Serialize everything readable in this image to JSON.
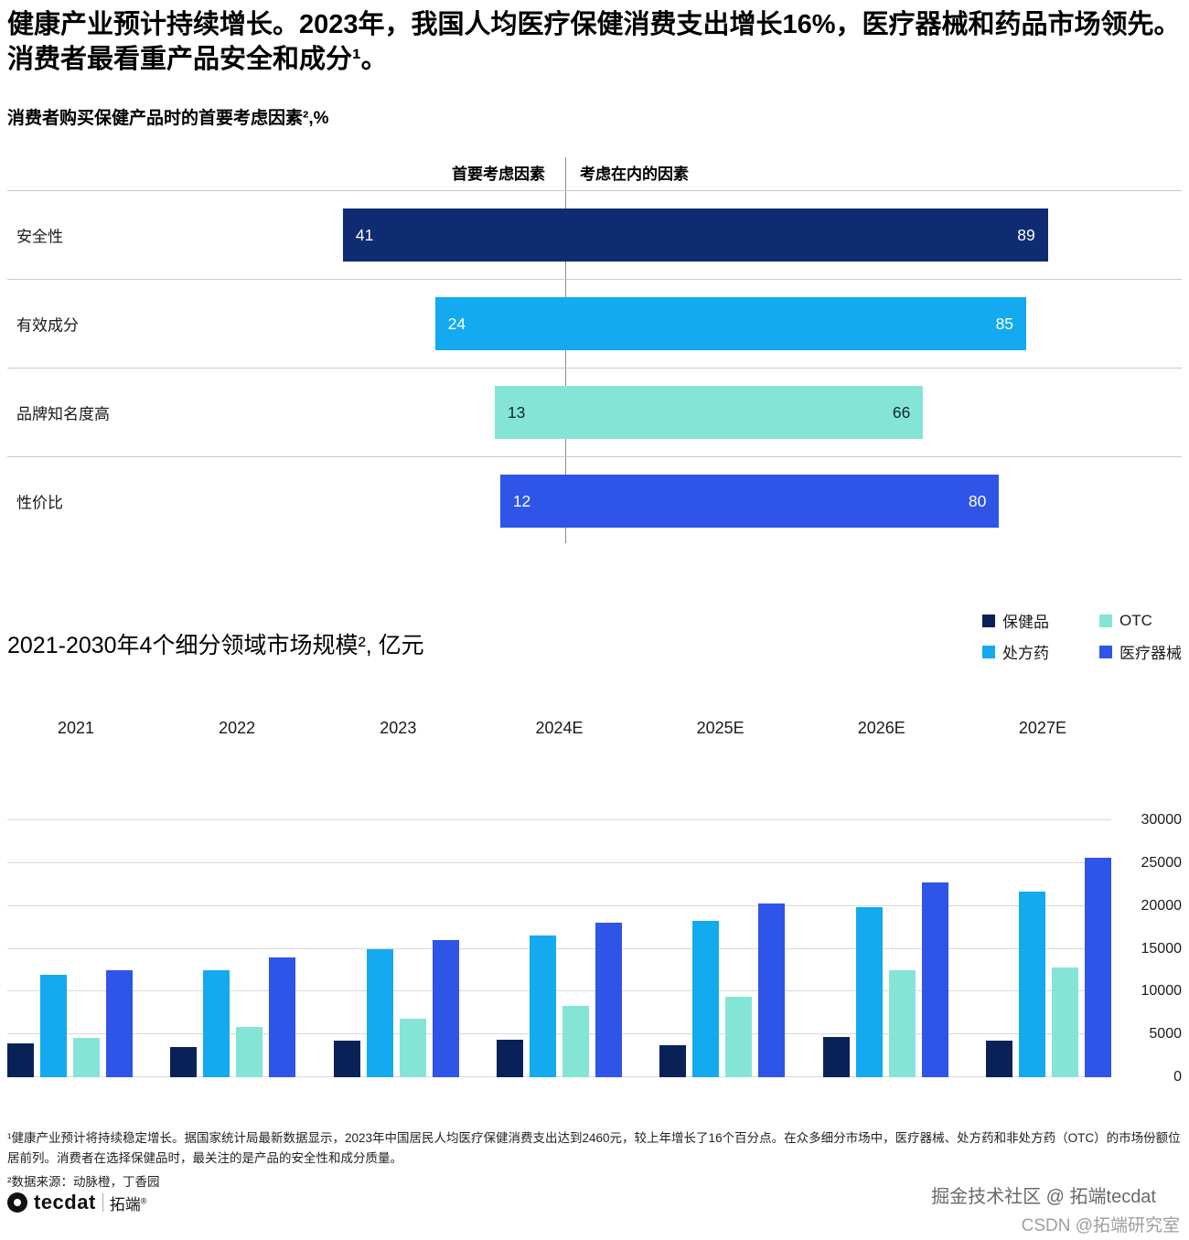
{
  "header": {
    "title": "健康产业预计持续增长。2023年，我国人均医疗保健消费支出增长16%，医疗器械和药品市场领先。消费者最看重产品安全和成分¹。"
  },
  "consideration": {
    "title": "消费者购买保健产品时的首要考虑因素²,%",
    "col_primary": "首要考虑因素",
    "col_considered": "考虑在内的因素"
  },
  "market": {
    "title": "2021-2030年4个细分领域市场规模², 亿元"
  },
  "footnotes": {
    "note1": "¹健康产业预计将持续稳定增长。据国家统计局最新数据显示，2023年中国居民人均医疗保健消费支出达到2460元，较上年增长了16个百分点。在众多细分市场中，医疗器械、处方药和非处方药（OTC）的市场份额位居前列。消费者在选择保健品时，最关注的是产品的安全性和成分质量。",
    "note2": "²数据来源：动脉橙，丁香园"
  },
  "branding": {
    "logo_text": "tecdat",
    "logo_cn": "拓端",
    "registered": "®",
    "watermark_line1": "掘金技术社区 @ 拓端tecdat",
    "watermark_line2": "CSDN @拓端研究室"
  },
  "colors": {
    "navy": "#0f2c72",
    "navy_dark": "#0a2158",
    "azure": "#13aaf0",
    "mint": "#84e5d6",
    "royal": "#2e55e8",
    "grid": "#d9d9d9"
  },
  "chart_data": [
    {
      "type": "bar",
      "orientation": "horizontal",
      "title": "消费者购买保健产品时的首要考虑因素²,%",
      "unit": "%",
      "column_headers": [
        "首要考虑因素",
        "考虑在内的因素"
      ],
      "categories": [
        "安全性",
        "有效成分",
        "品牌知名度高",
        "性价比"
      ],
      "series": [
        {
          "name": "首要考虑因素",
          "values": [
            41,
            24,
            13,
            12
          ]
        },
        {
          "name": "考虑在内的因素",
          "values": [
            89,
            85,
            66,
            80
          ]
        }
      ],
      "bar_colors": [
        "#0f2c72",
        "#13aaf0",
        "#84e5d6",
        "#2e55e8"
      ],
      "value_text_colors": [
        "#ffffff",
        "#ffffff",
        "#14233c",
        "#ffffff"
      ],
      "grid": false,
      "layout": "bars span left of divider by primary value and right of divider by considered value"
    },
    {
      "type": "bar",
      "title": "2021-2030年4个细分领域市场规模², 亿元",
      "ylabel": "亿元",
      "categories": [
        "2021",
        "2022",
        "2023",
        "2024E",
        "2025E",
        "2026E",
        "2027E"
      ],
      "series": [
        {
          "name": "保健品",
          "color": "#0a2158",
          "values": [
            3900,
            3500,
            4300,
            4400,
            3700,
            4700,
            4300
          ]
        },
        {
          "name": "处方药",
          "color": "#13aaf0",
          "values": [
            12000,
            12500,
            15000,
            16500,
            18300,
            19900,
            21700
          ]
        },
        {
          "name": "OTC",
          "color": "#84e5d6",
          "values": [
            4600,
            5900,
            6800,
            8300,
            9400,
            12500,
            12800
          ]
        },
        {
          "name": "医疗器械",
          "color": "#2e55e8",
          "values": [
            12500,
            14000,
            16000,
            18000,
            20300,
            22700,
            25600
          ]
        }
      ],
      "legend": [
        {
          "label": "保健品",
          "color": "#0a2158"
        },
        {
          "label": "OTC",
          "color": "#84e5d6"
        },
        {
          "label": "处方药",
          "color": "#13aaf0"
        },
        {
          "label": "医疗器械",
          "color": "#2e55e8"
        }
      ],
      "ylim": [
        0,
        30000
      ],
      "yticks": [
        0,
        5000,
        10000,
        15000,
        20000,
        25000,
        30000
      ],
      "grid": true,
      "legend_position": "top-right"
    }
  ]
}
